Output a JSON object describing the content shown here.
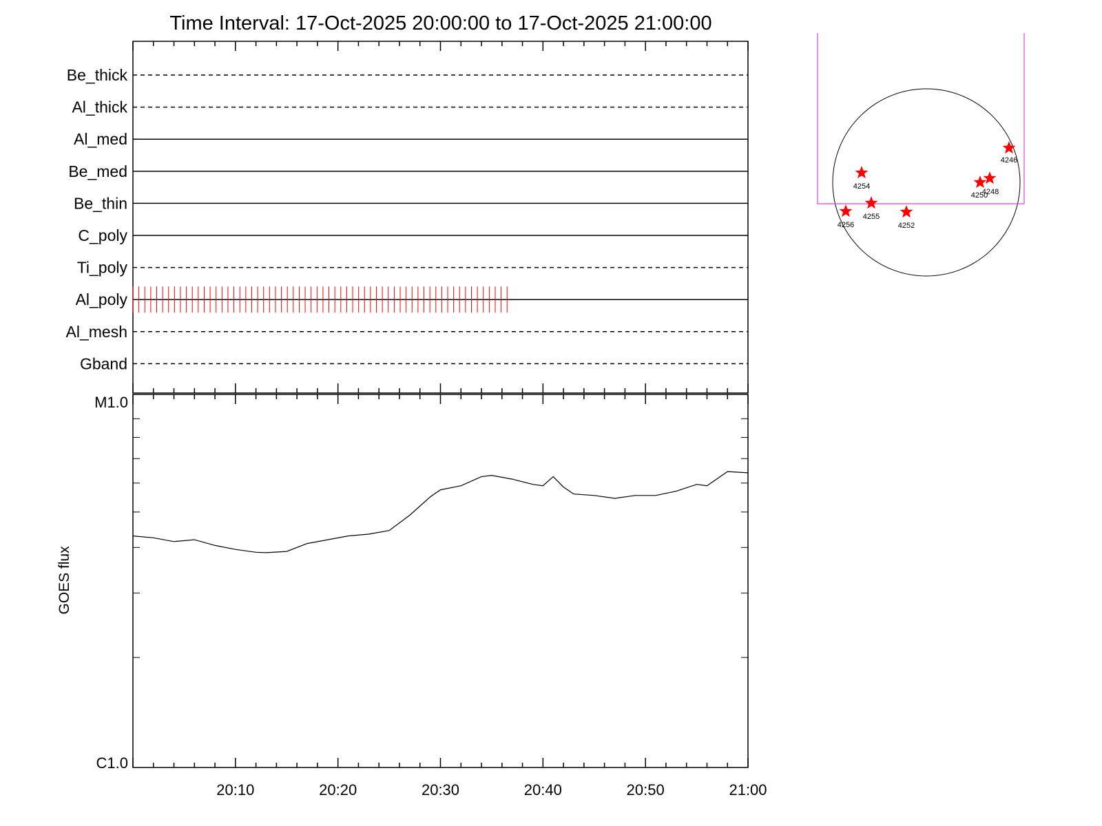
{
  "title": "Time Interval: 17-Oct-2025 20:00:00 to 17-Oct-2025 21:00:00",
  "colors": {
    "axis": "#000000",
    "flare_marks": "#ff0000",
    "fov_box": "#e040e0",
    "ar_star": "#ff0000"
  },
  "chart_data": [
    {
      "type": "timeline",
      "x_range": [
        "20:00",
        "21:00"
      ],
      "channels": [
        {
          "name": "Be_thick",
          "style": "dashed"
        },
        {
          "name": "Al_thick",
          "style": "dashed"
        },
        {
          "name": "Al_med",
          "style": "solid"
        },
        {
          "name": "Be_med",
          "style": "solid"
        },
        {
          "name": "Be_thin",
          "style": "solid"
        },
        {
          "name": "C_poly",
          "style": "solid"
        },
        {
          "name": "Ti_poly",
          "style": "dashed"
        },
        {
          "name": "Al_poly",
          "style": "solid",
          "marks": {
            "start": "20:00",
            "end": "20:36.5",
            "count": 64
          }
        },
        {
          "name": "Al_mesh",
          "style": "dashed"
        },
        {
          "name": "Gband",
          "style": "dashed"
        }
      ]
    },
    {
      "type": "line",
      "ylabel": "GOES flux",
      "yscale": "log",
      "ylim": [
        "C1.0",
        "M1.0"
      ],
      "ylim_values": [
        1e-06,
        1e-05
      ],
      "x_ticks": [
        "20:10",
        "20:20",
        "20:30",
        "20:40",
        "20:50",
        "21:00"
      ],
      "x_minutes": [
        0,
        2,
        4,
        6,
        8,
        10,
        12,
        13,
        15,
        17,
        19,
        21,
        23,
        25,
        27,
        29,
        30,
        32,
        34,
        35,
        37,
        39,
        40,
        41,
        42,
        43,
        45,
        47,
        49,
        51,
        53,
        55,
        56,
        58,
        60
      ],
      "y_flux": [
        4.3e-06,
        4.25e-06,
        4.15e-06,
        4.2e-06,
        4.05e-06,
        3.95e-06,
        3.88e-06,
        3.87e-06,
        3.9e-06,
        4.1e-06,
        4.2e-06,
        4.3e-06,
        4.35e-06,
        4.45e-06,
        4.9e-06,
        5.5e-06,
        5.75e-06,
        5.9e-06,
        6.25e-06,
        6.3e-06,
        6.15e-06,
        5.95e-06,
        5.9e-06,
        6.25e-06,
        5.85e-06,
        5.6e-06,
        5.55e-06,
        5.45e-06,
        5.55e-06,
        5.55e-06,
        5.7e-06,
        5.95e-06,
        5.9e-06,
        6.45e-06,
        6.4e-06
      ]
    }
  ],
  "context_map": {
    "active_regions": [
      {
        "label": "4246"
      },
      {
        "label": "4248"
      },
      {
        "label": "4250"
      },
      {
        "label": "4252"
      },
      {
        "label": "4254"
      },
      {
        "label": "4255"
      },
      {
        "label": "4256"
      }
    ]
  }
}
